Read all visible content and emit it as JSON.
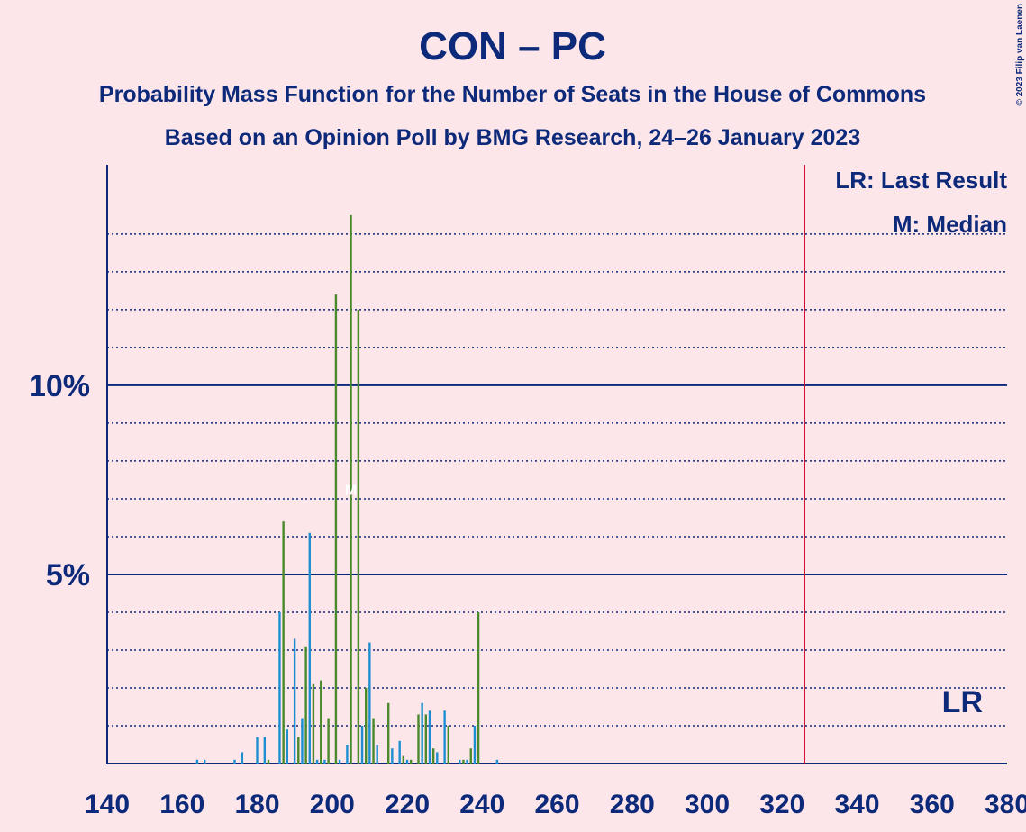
{
  "chart_data": {
    "type": "bar",
    "title": "CON – PC",
    "subtitle": "Probability Mass Function for the Number of Seats in the House of Commons",
    "subtitle2": "Based on an Opinion Poll by BMG Research, 24–26 January 2023",
    "copyright": "© 2023 Filip van Laenen",
    "legend_lr": "LR: Last Result",
    "legend_m": "M: Median",
    "xlim": [
      140,
      380
    ],
    "xticks": [
      140,
      160,
      180,
      200,
      220,
      240,
      260,
      280,
      300,
      320,
      340,
      360,
      380
    ],
    "ylim": [
      0,
      15.83
    ],
    "yticks": [
      {
        "value": 5,
        "label": "5%"
      },
      {
        "value": 10,
        "label": "10%"
      }
    ],
    "minor_yticks": [
      1,
      2,
      3,
      4,
      6,
      7,
      8,
      9,
      11,
      12,
      13,
      14
    ],
    "last_result": {
      "value": 326,
      "label": "LR"
    },
    "median": {
      "value": 205,
      "label": "M"
    },
    "series": [
      {
        "color": "#1d8fd1",
        "x": [
          164,
          166,
          174,
          176,
          180,
          182,
          186,
          188,
          190,
          192,
          194,
          196,
          198,
          202,
          204,
          208,
          210,
          212,
          216,
          218,
          220,
          224,
          226,
          228,
          230,
          234,
          236,
          238,
          244
        ],
        "values": [
          0.1,
          0.1,
          0.1,
          0.3,
          0.7,
          0.7,
          4.0,
          0.9,
          3.3,
          1.2,
          6.1,
          0.1,
          0.1,
          0.1,
          0.5,
          1.0,
          3.2,
          0.5,
          0.4,
          0.6,
          0.1,
          1.6,
          1.4,
          0.3,
          1.4,
          0.1,
          0.1,
          1.0,
          0.1
        ]
      },
      {
        "color": "#4a8a2c",
        "x": [
          183,
          187,
          191,
          193,
          195,
          197,
          199,
          201,
          205,
          207,
          209,
          211,
          215,
          219,
          221,
          223,
          225,
          227,
          231,
          235,
          237,
          239
        ],
        "values": [
          0.1,
          6.4,
          0.7,
          3.1,
          2.1,
          2.2,
          1.2,
          12.4,
          14.5,
          12.0,
          2.0,
          1.2,
          1.6,
          0.2,
          0.1,
          1.3,
          1.3,
          0.4,
          1.0,
          0.1,
          0.4,
          4.0
        ]
      }
    ]
  }
}
